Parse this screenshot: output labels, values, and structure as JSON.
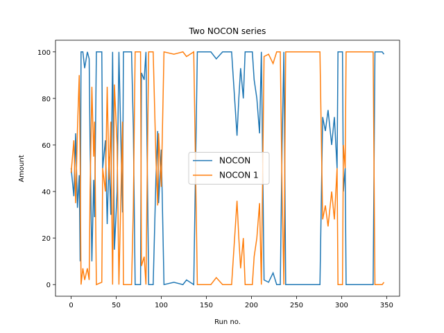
{
  "chart_data": {
    "type": "line",
    "title": "Two NOCON series",
    "xlabel": "Run no.",
    "ylabel": "Amount",
    "x": [
      0,
      3,
      5,
      7,
      9,
      10,
      11,
      13,
      15,
      18,
      20,
      21,
      23,
      25,
      26,
      28,
      34,
      35,
      38,
      40,
      42,
      44,
      46,
      48,
      51,
      53,
      55,
      57,
      58,
      67,
      69,
      71,
      77,
      78,
      81,
      83,
      86,
      91,
      94,
      96,
      97,
      100,
      103,
      114,
      124,
      128,
      136,
      140,
      151,
      155,
      161,
      168,
      178,
      184,
      186,
      188,
      191,
      193,
      201,
      203,
      206,
      209,
      211,
      214,
      219,
      224,
      228,
      232,
      234,
      236,
      238,
      276,
      279,
      282,
      285,
      289,
      292,
      295,
      296,
      301,
      302,
      304,
      305,
      335,
      337,
      345,
      347
    ],
    "series": [
      {
        "name": "NOCON",
        "color": "#1f77b4",
        "values": [
          50,
          38,
          65,
          33,
          47,
          10,
          100,
          100,
          93,
          100,
          97,
          60,
          10,
          45,
          29,
          100,
          100,
          50,
          62,
          26,
          55,
          30,
          100,
          15,
          40,
          100,
          65,
          31,
          100,
          100,
          67,
          0,
          0,
          91,
          88,
          100,
          0,
          0,
          45,
          66,
          35,
          58,
          0,
          1,
          0,
          2,
          0,
          100,
          100,
          100,
          97,
          100,
          100,
          64,
          80,
          93,
          80,
          100,
          100,
          88,
          80,
          65,
          100,
          2,
          1,
          5,
          0,
          0,
          60,
          100,
          0,
          0,
          72,
          66,
          75,
          60,
          72,
          50,
          100,
          100,
          40,
          50,
          0,
          0,
          100,
          100,
          99
        ]
      },
      {
        "name": "NOCON 1",
        "color": "#ff7f0e",
        "values": [
          48,
          62,
          35,
          67,
          90,
          53,
          0,
          7,
          2,
          7,
          2,
          40,
          85,
          55,
          70,
          0,
          1,
          50,
          40,
          85,
          45,
          70,
          0,
          86,
          60,
          0,
          35,
          70,
          0,
          0,
          33,
          100,
          100,
          8,
          12,
          0,
          100,
          100,
          55,
          34,
          65,
          42,
          100,
          99,
          100,
          98,
          100,
          0,
          0,
          0,
          3,
          0,
          0,
          36,
          20,
          7,
          20,
          0,
          0,
          12,
          20,
          35,
          0,
          98,
          99,
          95,
          100,
          100,
          40,
          0,
          100,
          100,
          28,
          34,
          25,
          40,
          28,
          50,
          0,
          0,
          60,
          50,
          100,
          100,
          0,
          0,
          1
        ]
      }
    ],
    "xlim": [
      -17.35,
      364.35
    ],
    "ylim": [
      -5,
      105
    ],
    "xticks": [
      0,
      50,
      100,
      150,
      200,
      250,
      300,
      350
    ],
    "yticks": [
      0,
      20,
      40,
      60,
      80,
      100
    ],
    "legend": "center"
  }
}
